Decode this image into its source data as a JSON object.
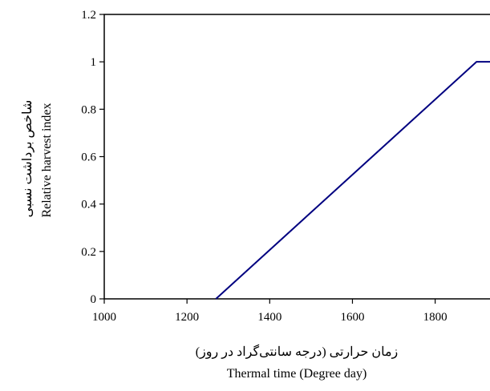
{
  "chart_data": {
    "type": "line",
    "title": "",
    "xlabel": "Thermal time (Degree day)",
    "xlabel_fa": "زمان حرارتی (درجه سانتی‌گراد در روز)",
    "ylabel": "Relative harvest index",
    "ylabel_fa": "شاخص برداشت نسبی",
    "xlim": [
      1000,
      1950
    ],
    "ylim": [
      0,
      1.2
    ],
    "x_ticks": [
      1000,
      1200,
      1400,
      1600,
      1800
    ],
    "y_ticks": [
      0,
      0.2,
      0.4,
      0.6,
      0.8,
      1,
      1.2
    ],
    "grid": false,
    "series": [
      {
        "color": "#000080",
        "x": [
          1270,
          1900,
          1950
        ],
        "y": [
          0,
          1,
          1
        ]
      }
    ]
  }
}
